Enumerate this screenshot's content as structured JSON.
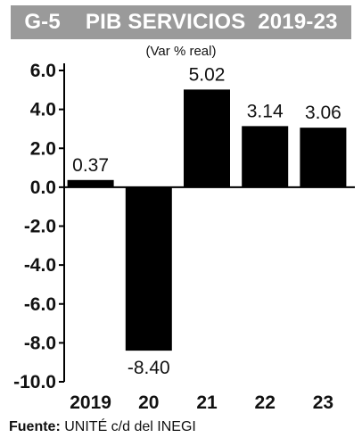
{
  "header": {
    "code": "G-5",
    "title": "PIB SERVICIOS  2019-23",
    "subtitle": "(Var % real)"
  },
  "source": {
    "label": "Fuente:",
    "text": "UNITÉ c/d del INEGI"
  },
  "colors": {
    "band": "#9a9a9a",
    "bar": "#000000",
    "axis": "#000000"
  },
  "chart_data": {
    "type": "bar",
    "title": "PIB SERVICIOS  2019-23",
    "subtitle": "(Var % real)",
    "categories": [
      "2019",
      "20",
      "21",
      "22",
      "23"
    ],
    "values": [
      0.37,
      -8.4,
      5.02,
      3.14,
      3.06
    ],
    "data_labels": [
      "0.37",
      "-8.40",
      "5.02",
      "3.14",
      "3.06"
    ],
    "ylim": [
      -10.0,
      6.0
    ],
    "y_ticks": [
      6.0,
      4.0,
      2.0,
      0.0,
      -2.0,
      -4.0,
      -6.0,
      -8.0,
      -10.0
    ],
    "y_tick_labels": [
      "6.0",
      "4.0",
      "2.0",
      "0.0",
      "-2.0",
      "-4.0",
      "-6.0",
      "-8.0",
      "-10.0"
    ],
    "grid": false,
    "legend": "none"
  }
}
